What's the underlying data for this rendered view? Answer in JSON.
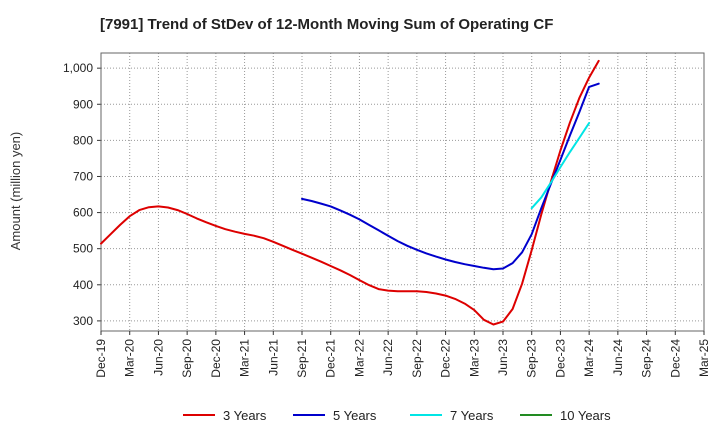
{
  "chart_data": {
    "type": "line",
    "title": "[7991]  Trend of StDev of 12-Month Moving Sum of Operating CF",
    "xlabel": "",
    "ylabel": "Amount (million yen)",
    "categories": [
      "Dec-19",
      "Mar-20",
      "Jun-20",
      "Sep-20",
      "Dec-20",
      "Mar-21",
      "Jun-21",
      "Sep-21",
      "Dec-21",
      "Mar-22",
      "Jun-22",
      "Sep-22",
      "Dec-22",
      "Mar-23",
      "Jun-23",
      "Sep-23",
      "Dec-23",
      "Mar-24",
      "Jun-24",
      "Sep-24",
      "Dec-24",
      "Mar-25"
    ],
    "yticks": [
      300,
      400,
      500,
      600,
      700,
      800,
      900,
      1000
    ],
    "ytick_labels": [
      "300",
      "400",
      "500",
      "600",
      "700",
      "800",
      "900",
      "1,000"
    ],
    "ylim": [
      272,
      1042
    ],
    "grid": true,
    "legend_position": "bottom",
    "series": [
      {
        "name": "3 Years",
        "color": "#dd0000",
        "points": [
          [
            0,
            514
          ],
          [
            1,
            540
          ],
          [
            2,
            566
          ],
          [
            3,
            590
          ],
          [
            4,
            607
          ],
          [
            5,
            615
          ],
          [
            6,
            617
          ],
          [
            7,
            614
          ],
          [
            8,
            607
          ],
          [
            9,
            596
          ],
          [
            10,
            584
          ],
          [
            11,
            573
          ],
          [
            12,
            563
          ],
          [
            13,
            554
          ],
          [
            14,
            547
          ],
          [
            15,
            541
          ],
          [
            16,
            536
          ],
          [
            17,
            529
          ],
          [
            18,
            519
          ],
          [
            19,
            508
          ],
          [
            20,
            497
          ],
          [
            21,
            486
          ],
          [
            22,
            475
          ],
          [
            23,
            464
          ],
          [
            24,
            452
          ],
          [
            25,
            440
          ],
          [
            26,
            427
          ],
          [
            27,
            413
          ],
          [
            28,
            399
          ],
          [
            29,
            388
          ],
          [
            30,
            384
          ],
          [
            31,
            382
          ],
          [
            32,
            382
          ],
          [
            33,
            382
          ],
          [
            34,
            380
          ],
          [
            35,
            376
          ],
          [
            36,
            370
          ],
          [
            37,
            361
          ],
          [
            38,
            348
          ],
          [
            39,
            330
          ],
          [
            40,
            303
          ],
          [
            41,
            290
          ],
          [
            42,
            298
          ],
          [
            43,
            333
          ],
          [
            44,
            403
          ],
          [
            45,
            496
          ],
          [
            46,
            595
          ],
          [
            47,
            686
          ],
          [
            48,
            772
          ],
          [
            49,
            850
          ],
          [
            50,
            919
          ],
          [
            51,
            974
          ],
          [
            52,
            1020
          ]
        ]
      },
      {
        "name": "5 Years",
        "color": "#0000cc",
        "points": [
          [
            21,
            638
          ],
          [
            22,
            632
          ],
          [
            23,
            625
          ],
          [
            24,
            617
          ],
          [
            25,
            606
          ],
          [
            26,
            594
          ],
          [
            27,
            581
          ],
          [
            28,
            566
          ],
          [
            29,
            551
          ],
          [
            30,
            536
          ],
          [
            31,
            521
          ],
          [
            32,
            508
          ],
          [
            33,
            497
          ],
          [
            34,
            487
          ],
          [
            35,
            478
          ],
          [
            36,
            470
          ],
          [
            37,
            463
          ],
          [
            38,
            457
          ],
          [
            39,
            452
          ],
          [
            40,
            447
          ],
          [
            41,
            443
          ],
          [
            42,
            445
          ],
          [
            43,
            460
          ],
          [
            44,
            490
          ],
          [
            45,
            540
          ],
          [
            46,
            612
          ],
          [
            47,
            680
          ],
          [
            48,
            746
          ],
          [
            49,
            814
          ],
          [
            50,
            880
          ],
          [
            51,
            948
          ],
          [
            52,
            957
          ]
        ]
      },
      {
        "name": "7 Years",
        "color": "#00e5e5",
        "points": [
          [
            45,
            612
          ],
          [
            46,
            642
          ],
          [
            47,
            683
          ],
          [
            48,
            726
          ],
          [
            49,
            768
          ],
          [
            50,
            808
          ],
          [
            51,
            848
          ]
        ]
      },
      {
        "name": "10 Years",
        "color": "#228B22",
        "points": []
      }
    ]
  }
}
